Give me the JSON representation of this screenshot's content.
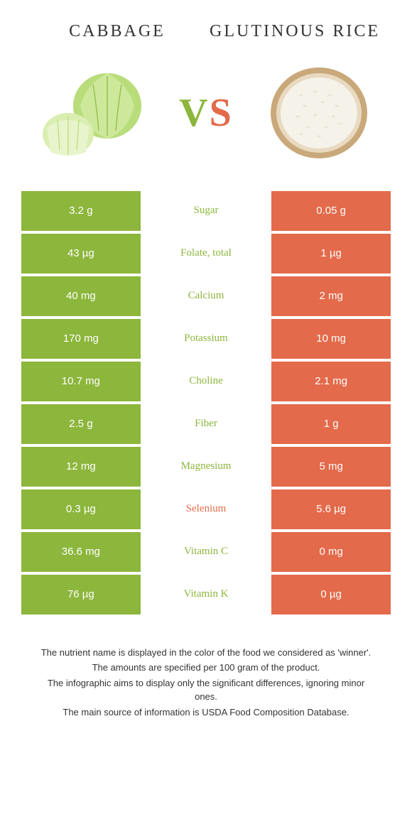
{
  "colors": {
    "green": "#8cb63c",
    "orange": "#e36a4a",
    "text": "#333333",
    "white": "#ffffff"
  },
  "food_left": {
    "name": "CABBAGE"
  },
  "food_right": {
    "name": "GLUTINOUS RICE"
  },
  "vs_label": {
    "v": "V",
    "s": "S"
  },
  "nutrients": [
    {
      "left": "3.2 g",
      "name": "Sugar",
      "right": "0.05 g",
      "winner": "left"
    },
    {
      "left": "43 µg",
      "name": "Folate, total",
      "right": "1 µg",
      "winner": "left"
    },
    {
      "left": "40 mg",
      "name": "Calcium",
      "right": "2 mg",
      "winner": "left"
    },
    {
      "left": "170 mg",
      "name": "Potassium",
      "right": "10 mg",
      "winner": "left"
    },
    {
      "left": "10.7 mg",
      "name": "Choline",
      "right": "2.1 mg",
      "winner": "left"
    },
    {
      "left": "2.5 g",
      "name": "Fiber",
      "right": "1 g",
      "winner": "left"
    },
    {
      "left": "12 mg",
      "name": "Magnesium",
      "right": "5 mg",
      "winner": "left"
    },
    {
      "left": "0.3 µg",
      "name": "Selenium",
      "right": "5.6 µg",
      "winner": "right"
    },
    {
      "left": "36.6 mg",
      "name": "Vitamin C",
      "right": "0 mg",
      "winner": "left"
    },
    {
      "left": "76 µg",
      "name": "Vitamin K",
      "right": "0 µg",
      "winner": "left"
    }
  ],
  "footer": {
    "line1": "The nutrient name is displayed in the color of the food we considered as 'winner'.",
    "line2": "The amounts are specified per 100 gram of the product.",
    "line3": "The infographic aims to display only the significant differences, ignoring minor ones.",
    "line4": "The main source of information is USDA Food Composition Database."
  }
}
